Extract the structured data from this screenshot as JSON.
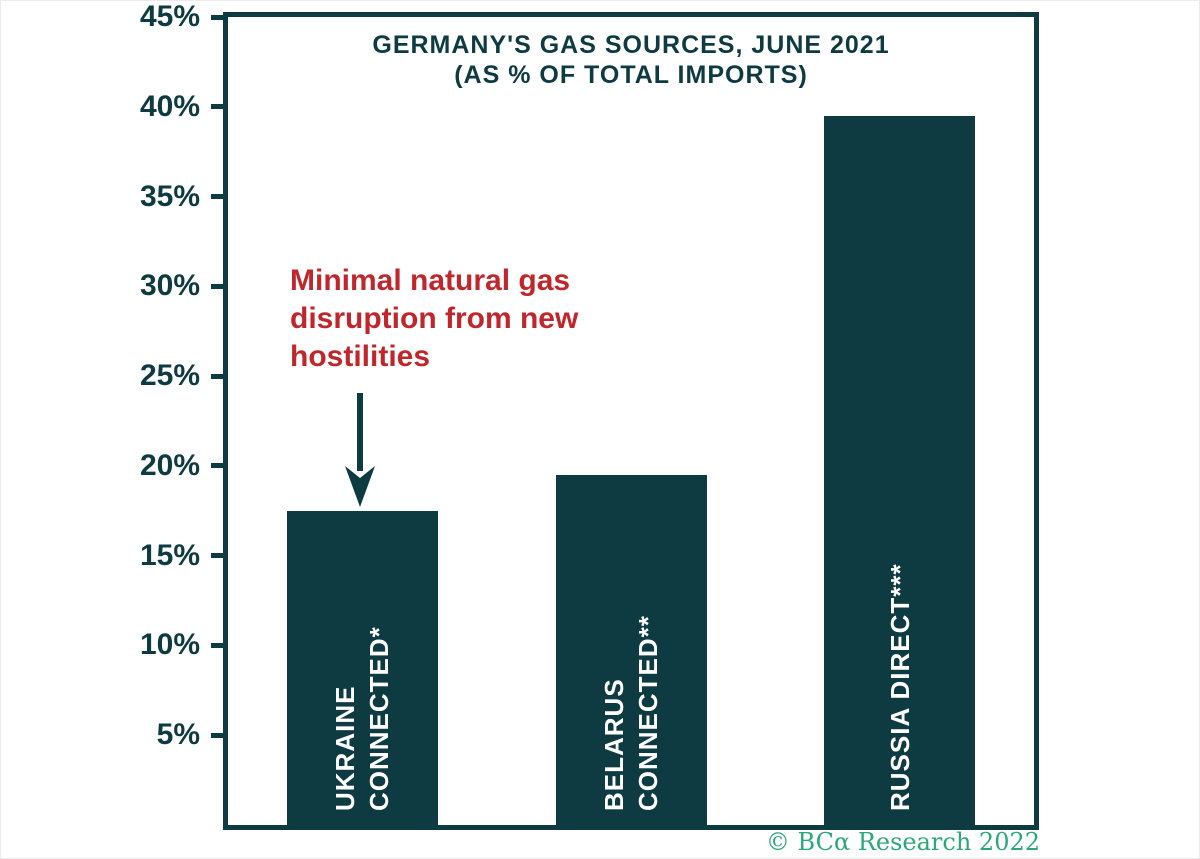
{
  "colors": {
    "teal": "#0e3a41",
    "red": "#c0272d",
    "green": "#2aa875",
    "bar_text": "#ffffff"
  },
  "annotation": {
    "text": "Minimal natural gas\ndisruption from new\nhostilities"
  },
  "footer": {
    "text": "© BCα Research 2022"
  },
  "chart_data": {
    "type": "bar",
    "title": "GERMANY'S GAS SOURCES, JUNE 2021",
    "subtitle": "(AS % OF TOTAL IMPORTS)",
    "categories": [
      "UKRAINE\nCONNECTED*",
      "BELARUS\nCONNECTED**",
      "RUSSIA DIRECT***"
    ],
    "values": [
      17.5,
      19.5,
      39.5
    ],
    "xlabel": "",
    "ylabel": "",
    "ylim": [
      0,
      45
    ],
    "yticks": [
      5,
      10,
      15,
      20,
      25,
      30,
      35,
      40,
      45
    ],
    "ytick_suffix": "%",
    "grid": false,
    "legend": "none",
    "annotations": [
      "Minimal natural gas disruption from new hostilities (arrow to UKRAINE CONNECTED* bar)"
    ],
    "source_note": "© BCα Research 2022"
  }
}
